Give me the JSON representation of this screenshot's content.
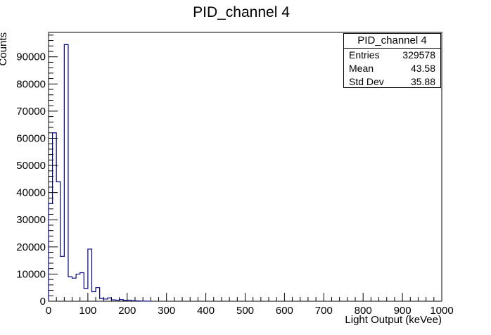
{
  "chart_data": {
    "type": "histogram",
    "title": "PID_channel 4",
    "xlabel": "Light Output (keVee)",
    "ylabel": "Counts",
    "xlim": [
      0,
      1000
    ],
    "ylim": [
      0,
      99000
    ],
    "bin_width": 10,
    "x_ticks": [
      0,
      100,
      200,
      300,
      400,
      500,
      600,
      700,
      800,
      900,
      1000
    ],
    "y_ticks": [
      0,
      10000,
      20000,
      30000,
      40000,
      50000,
      60000,
      70000,
      80000,
      90000
    ],
    "bins": [
      {
        "x": 0,
        "y": 36000
      },
      {
        "x": 10,
        "y": 62000
      },
      {
        "x": 20,
        "y": 44000
      },
      {
        "x": 30,
        "y": 16500
      },
      {
        "x": 40,
        "y": 94500
      },
      {
        "x": 50,
        "y": 9000
      },
      {
        "x": 60,
        "y": 8500
      },
      {
        "x": 70,
        "y": 10000
      },
      {
        "x": 80,
        "y": 10500
      },
      {
        "x": 90,
        "y": 4700
      },
      {
        "x": 100,
        "y": 19200
      },
      {
        "x": 110,
        "y": 3500
      },
      {
        "x": 120,
        "y": 5000
      },
      {
        "x": 130,
        "y": 1000
      },
      {
        "x": 140,
        "y": 800
      },
      {
        "x": 150,
        "y": 1200
      },
      {
        "x": 160,
        "y": 500
      },
      {
        "x": 170,
        "y": 400
      },
      {
        "x": 180,
        "y": 600
      },
      {
        "x": 190,
        "y": 300
      },
      {
        "x": 200,
        "y": 400
      },
      {
        "x": 210,
        "y": 200
      },
      {
        "x": 220,
        "y": 150
      },
      {
        "x": 230,
        "y": 80
      },
      {
        "x": 240,
        "y": 40
      },
      {
        "x": 250,
        "y": 20
      }
    ],
    "line_color": "#000080",
    "grid": false
  },
  "stats": {
    "title": "PID_channel 4",
    "rows": [
      {
        "label": "Entries",
        "value": "329578"
      },
      {
        "label": "Mean",
        "value": "43.58"
      },
      {
        "label": "Std Dev",
        "value": "35.88"
      }
    ]
  }
}
